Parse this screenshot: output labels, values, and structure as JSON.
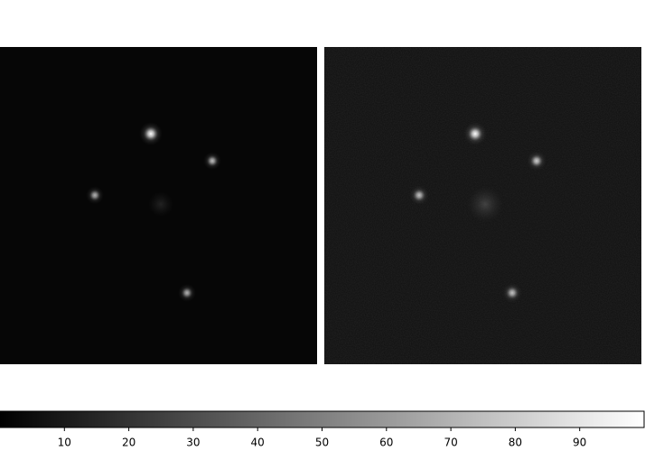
{
  "chart_data": {
    "type": "image",
    "colormap": "gray",
    "clim": [
      0,
      100
    ],
    "cticks": [
      10,
      20,
      30,
      40,
      50,
      60,
      70,
      80,
      90
    ]
  }
}
